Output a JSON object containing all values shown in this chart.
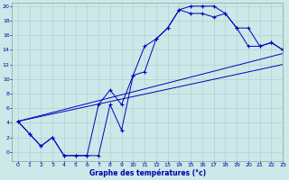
{
  "xlabel": "Graphe des températures (°c)",
  "bg_color": "#cce8e8",
  "grid_color": "#aacccc",
  "line_color": "#0000bb",
  "xmin": -0.5,
  "xmax": 23,
  "ymin": -1.2,
  "ymax": 20.5,
  "curve1_x": [
    0,
    1,
    2,
    3,
    4,
    5,
    6,
    7,
    8,
    9,
    10,
    11,
    12,
    13,
    14,
    15,
    16,
    17,
    18,
    19,
    20,
    21,
    22,
    23
  ],
  "curve1_y": [
    4.2,
    2.5,
    0.8,
    2.0,
    -0.5,
    -0.5,
    -0.5,
    -0.5,
    6.5,
    3.0,
    10.5,
    14.5,
    15.5,
    17.0,
    19.5,
    20.0,
    20.0,
    20.0,
    19.0,
    17.0,
    14.5,
    14.5,
    15.0,
    14.0
  ],
  "curve2_x": [
    0,
    1,
    2,
    3,
    4,
    5,
    6,
    7,
    8,
    9,
    10,
    11,
    12,
    13,
    14,
    15,
    16,
    17,
    18,
    19,
    20,
    21,
    22,
    23
  ],
  "curve2_y": [
    4.2,
    2.5,
    0.8,
    2.0,
    -0.5,
    -0.5,
    -0.5,
    6.5,
    8.5,
    6.5,
    10.5,
    11.0,
    15.5,
    17.0,
    19.5,
    19.0,
    19.0,
    18.5,
    19.0,
    17.0,
    17.0,
    14.5,
    15.0,
    14.0
  ],
  "trend1_x": [
    0,
    23
  ],
  "trend1_y": [
    4.2,
    13.5
  ],
  "trend2_x": [
    0,
    23
  ],
  "trend2_y": [
    4.2,
    12.0
  ],
  "yticks": [
    0,
    2,
    4,
    6,
    8,
    10,
    12,
    14,
    16,
    18,
    20
  ],
  "xticks": [
    0,
    1,
    2,
    3,
    4,
    5,
    6,
    7,
    8,
    9,
    10,
    11,
    12,
    13,
    14,
    15,
    16,
    17,
    18,
    19,
    20,
    21,
    22,
    23
  ]
}
